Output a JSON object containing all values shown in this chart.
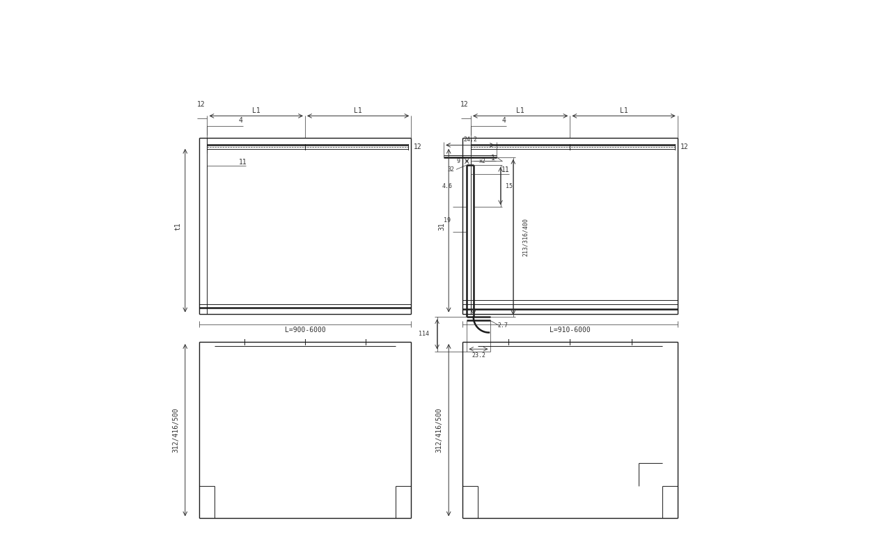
{
  "bg_color": "#ffffff",
  "line_color": "#1a1a1a",
  "dim_color": "#333333",
  "thin_lw": 0.7,
  "thick_lw": 1.8,
  "medium_lw": 1.0,
  "font_size": 7,
  "view1_label_L": "L=900-6000",
  "view2_label_L": "L=910-6000",
  "dim_L1": "L1",
  "dim_12": "12",
  "dim_4": "4",
  "dim_t1": "t1",
  "dim_11": "11",
  "dim_1": "1",
  "dim_24_2": "24.2",
  "dim_9": "9",
  "dim_x2": "x2",
  "dim_32": "32",
  "dim_4_6": "4.6",
  "dim_19": "19",
  "dim_15": "15",
  "dim_height": "213/316/400",
  "dim_114": "114",
  "dim_2_7": "2.7",
  "dim_23_2": "23.2",
  "dim_31": "31",
  "bot_dim": "312/416/500"
}
